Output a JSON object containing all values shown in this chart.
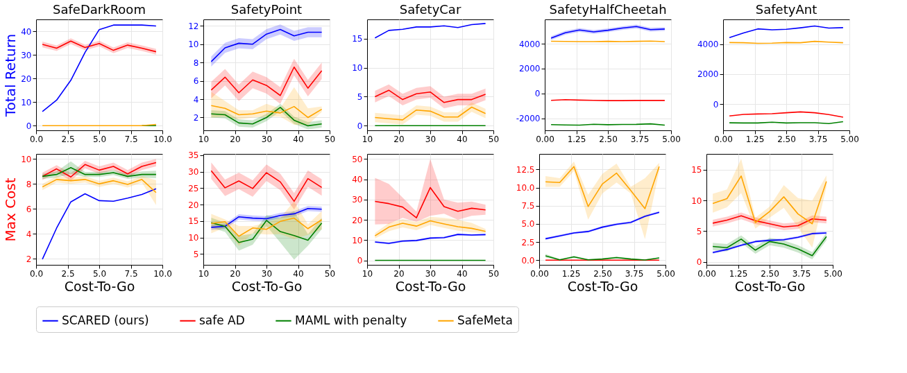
{
  "chart_data": [
    {
      "type": "line",
      "title": "SafeDarkRoom",
      "ylabel": "Total Return",
      "x": [
        0.5,
        1.625,
        2.75,
        3.875,
        5.0,
        6.125,
        7.25,
        8.375,
        9.5
      ],
      "xlim": [
        0,
        10
      ],
      "xticks": [
        {
          "value": 0,
          "label": "0.0"
        },
        {
          "value": 2.5,
          "label": "2.5"
        },
        {
          "value": 5,
          "label": "5.0"
        },
        {
          "value": 7.5,
          "label": "7.5"
        },
        {
          "value": 10,
          "label": "10.0"
        }
      ],
      "ylim": [
        -2,
        45
      ],
      "yticks": [
        0,
        10,
        20,
        30,
        40
      ],
      "grid": true,
      "legend": "bottom",
      "series": [
        {
          "name": "SCARED (ours)",
          "color": "#0000ff",
          "values": [
            6,
            10.8,
            19.2,
            31,
            40.7,
            42.6,
            42.6,
            42.6,
            42.2
          ]
        },
        {
          "name": "safe AD",
          "color": "#ff0000",
          "values": [
            34.4,
            32.8,
            35.8,
            33.1,
            34.8,
            31.9,
            34.1,
            32.8,
            31.3
          ],
          "lower": [
            33.2,
            31.6,
            34.6,
            31.9,
            33.6,
            30.7,
            32.9,
            31.6,
            30.1
          ],
          "upper": [
            35.6,
            34.0,
            37.0,
            34.3,
            36.0,
            33.1,
            35.3,
            34.0,
            32.5
          ]
        },
        {
          "name": "MAML with penalty",
          "color": "#008000",
          "values": [
            null,
            null,
            null,
            null,
            null,
            null,
            null,
            0,
            0
          ]
        },
        {
          "name": "SafeMeta",
          "color": "#ffa500",
          "values": [
            0,
            0,
            0,
            0,
            0,
            0,
            0,
            0,
            0.5
          ]
        }
      ]
    },
    {
      "type": "line",
      "title": "SafetyPoint",
      "x": [
        12.5,
        16.875,
        21.25,
        25.625,
        30,
        34.375,
        38.75,
        43.125,
        47.5
      ],
      "xlim": [
        10,
        50
      ],
      "xticks": [
        10,
        20,
        30,
        40,
        50
      ],
      "ylim": [
        0.6,
        12.7
      ],
      "yticks": [
        2,
        4,
        6,
        8,
        10,
        12
      ],
      "grid": true,
      "series": [
        {
          "color": "#0000ff",
          "values": [
            8.1,
            9.6,
            10.1,
            10.0,
            11.1,
            11.6,
            10.9,
            11.3,
            11.3
          ],
          "lower": [
            7.55,
            9.05,
            9.55,
            9.45,
            10.55,
            11.05,
            10.35,
            10.75,
            10.75
          ],
          "upper": [
            8.65,
            10.15,
            10.65,
            10.55,
            11.65,
            12.15,
            11.45,
            11.85,
            11.85
          ]
        },
        {
          "color": "#ff0000",
          "values": [
            5.0,
            6.4,
            4.7,
            6.1,
            5.5,
            4.4,
            7.5,
            5.2,
            7.1
          ],
          "lower": [
            4.1,
            5.5,
            3.8,
            5.2,
            4.6,
            3.5,
            6.6,
            4.3,
            6.2
          ],
          "upper": [
            5.9,
            7.3,
            5.6,
            7.0,
            6.4,
            5.3,
            8.4,
            6.1,
            8.0
          ]
        },
        {
          "color": "#008000",
          "values": [
            2.4,
            2.3,
            1.4,
            1.3,
            2.0,
            3.1,
            1.7,
            1.1,
            1.3
          ],
          "lower": [
            2.0,
            1.9,
            1.0,
            0.9,
            1.6,
            2.7,
            1.3,
            0.7,
            0.9
          ],
          "upper": [
            2.8,
            2.7,
            1.8,
            1.7,
            2.4,
            3.5,
            2.1,
            1.5,
            1.7
          ]
        },
        {
          "color": "#ffa500",
          "values": [
            3.3,
            3.0,
            2.3,
            2.4,
            2.7,
            2.5,
            3.2,
            2.0,
            2.9
          ],
          "lower": [
            2.0,
            2.1,
            1.8,
            2.0,
            2.1,
            2.1,
            1.2,
            1.2,
            2.6
          ],
          "upper": [
            4.8,
            3.8,
            2.8,
            2.8,
            3.5,
            3.0,
            5.3,
            3.0,
            3.2
          ]
        }
      ]
    },
    {
      "type": "line",
      "title": "SafetyCar",
      "x": [
        12.5,
        16.875,
        21.25,
        25.625,
        30,
        34.375,
        38.75,
        43.125,
        47.5
      ],
      "xlim": [
        10,
        50
      ],
      "xticks": [
        10,
        20,
        30,
        40,
        50
      ],
      "ylim": [
        -0.8,
        18.3
      ],
      "yticks": [
        0,
        5,
        10,
        15
      ],
      "grid": true,
      "series": [
        {
          "color": "#0000ff",
          "values": [
            15.1,
            16.4,
            16.6,
            17.0,
            17.0,
            17.2,
            16.9,
            17.4,
            17.6
          ]
        },
        {
          "color": "#ff0000",
          "values": [
            5.0,
            6.1,
            4.5,
            5.5,
            5.8,
            4.0,
            4.5,
            4.5,
            5.4
          ],
          "lower": [
            4.0,
            5.1,
            3.5,
            4.5,
            4.8,
            3.0,
            3.5,
            3.5,
            4.4
          ],
          "upper": [
            6.0,
            7.1,
            5.5,
            6.5,
            6.8,
            5.0,
            5.5,
            5.5,
            6.4
          ]
        },
        {
          "color": "#008000",
          "values": [
            0,
            0,
            0,
            0,
            0,
            0,
            0,
            0,
            0
          ]
        },
        {
          "color": "#ffa500",
          "values": [
            1.4,
            1.2,
            1.0,
            2.7,
            2.5,
            1.5,
            1.5,
            3.2,
            2.1
          ],
          "lower": [
            0.6,
            0.4,
            0.2,
            1.9,
            1.7,
            0.7,
            0.7,
            2.4,
            1.3
          ],
          "upper": [
            2.2,
            2.0,
            1.8,
            3.5,
            3.3,
            2.3,
            2.3,
            4.0,
            2.9
          ]
        }
      ]
    },
    {
      "type": "line",
      "title": "SafetyHalfCheetah",
      "x": [
        0.25,
        0.8125,
        1.375,
        1.9375,
        2.5,
        3.0625,
        3.625,
        4.1875,
        4.75
      ],
      "xlim": [
        0,
        5
      ],
      "xticks": [
        {
          "value": 0,
          "label": "0.00"
        },
        1.25,
        {
          "value": 2.5,
          "label": "2.50"
        },
        3.75,
        {
          "value": 5,
          "label": "5.00"
        }
      ],
      "ylim": [
        -2960,
        5950
      ],
      "yticks": [
        -2000,
        0,
        2000,
        4000
      ],
      "grid": true,
      "series": [
        {
          "color": "#0000ff",
          "values": [
            4450,
            4880,
            5100,
            4950,
            5080,
            5250,
            5380,
            5130,
            5180
          ],
          "lower": [
            4300,
            4730,
            4950,
            4800,
            4930,
            5100,
            5230,
            4980,
            5030
          ],
          "upper": [
            4600,
            5030,
            5250,
            5100,
            5230,
            5400,
            5530,
            5280,
            5330
          ]
        },
        {
          "color": "#ff0000",
          "values": [
            -550,
            -500,
            -530,
            -550,
            -570,
            -570,
            -560,
            -560,
            -560
          ]
        },
        {
          "color": "#008000",
          "values": [
            -2500,
            -2530,
            -2540,
            -2470,
            -2510,
            -2490,
            -2480,
            -2440,
            -2540
          ]
        },
        {
          "color": "#ffa500",
          "values": [
            4200,
            4180,
            4170,
            4170,
            4190,
            4170,
            4190,
            4210,
            4170
          ]
        }
      ]
    },
    {
      "type": "line",
      "title": "SafetyAnt",
      "x": [
        0.25,
        0.8125,
        1.375,
        1.9375,
        2.5,
        3.0625,
        3.625,
        4.1875,
        4.75
      ],
      "xlim": [
        0,
        5
      ],
      "xticks": [
        {
          "value": 0,
          "label": "0.00"
        },
        1.25,
        {
          "value": 2.5,
          "label": "2.50"
        },
        3.75,
        {
          "value": 5,
          "label": "5.00"
        }
      ],
      "ylim": [
        -1740,
        5640
      ],
      "yticks": [
        0,
        2000,
        4000
      ],
      "grid": true,
      "series": [
        {
          "color": "#0000ff",
          "values": [
            4430,
            4740,
            5010,
            4950,
            4980,
            5080,
            5200,
            5060,
            5090
          ]
        },
        {
          "color": "#ff0000",
          "values": [
            -780,
            -680,
            -650,
            -630,
            -570,
            -510,
            -570,
            -690,
            -860
          ]
        },
        {
          "color": "#008000",
          "values": [
            -1240,
            -1250,
            -1250,
            -1200,
            -1250,
            -1230,
            -1230,
            -1290,
            -1160
          ]
        },
        {
          "color": "#ffa500",
          "values": [
            4100,
            4090,
            4050,
            4060,
            4100,
            4090,
            4180,
            4130,
            4090
          ]
        }
      ]
    },
    {
      "type": "line",
      "ylabel": "Max Cost",
      "xlabel": "Cost-To-Go",
      "x": [
        0.5,
        1.625,
        2.75,
        3.875,
        5.0,
        6.125,
        7.25,
        8.375,
        9.5
      ],
      "xlim": [
        0,
        10
      ],
      "xticks": [
        {
          "value": 0,
          "label": "0.0"
        },
        {
          "value": 2.5,
          "label": "2.5"
        },
        {
          "value": 5,
          "label": "5.0"
        },
        {
          "value": 7.5,
          "label": "7.5"
        },
        {
          "value": 10,
          "label": "10.0"
        }
      ],
      "ylim": [
        1.5,
        10.4
      ],
      "yticks": [
        2,
        4,
        6,
        8,
        10
      ],
      "grid": true,
      "series": [
        {
          "color": "#0000ff",
          "values": [
            1.95,
            4.45,
            6.55,
            7.2,
            6.65,
            6.6,
            6.85,
            7.15,
            7.6
          ]
        },
        {
          "color": "#ff0000",
          "values": [
            8.6,
            9.2,
            8.55,
            9.55,
            9.1,
            9.4,
            8.8,
            9.4,
            9.7
          ],
          "lower": [
            8.3,
            8.9,
            8.25,
            9.25,
            8.8,
            9.1,
            8.5,
            9.1,
            9.4
          ],
          "upper": [
            8.9,
            9.5,
            8.85,
            9.85,
            9.4,
            9.7,
            9.1,
            9.7,
            10.0
          ]
        },
        {
          "color": "#008000",
          "values": [
            8.6,
            8.75,
            9.3,
            8.75,
            8.75,
            8.9,
            8.6,
            8.75,
            8.75
          ],
          "lower": [
            8.4,
            8.5,
            8.8,
            8.55,
            8.55,
            8.7,
            8.4,
            8.5,
            8.45
          ],
          "upper": [
            8.8,
            9.0,
            9.8,
            8.95,
            8.95,
            9.1,
            8.8,
            9.0,
            9.05
          ]
        },
        {
          "color": "#ffa500",
          "values": [
            7.75,
            8.35,
            8.25,
            8.35,
            8.0,
            8.25,
            7.95,
            8.35,
            7.3
          ],
          "lower": [
            7.5,
            8.1,
            8.0,
            8.1,
            7.75,
            8.0,
            7.7,
            8.1,
            6.3
          ],
          "upper": [
            8.0,
            8.6,
            8.5,
            8.6,
            8.25,
            8.5,
            8.2,
            8.6,
            8.3
          ]
        }
      ]
    },
    {
      "type": "line",
      "xlabel": "Cost-To-Go",
      "x": [
        12.5,
        16.875,
        21.25,
        25.625,
        30,
        34.375,
        38.75,
        43.125,
        47.5
      ],
      "xlim": [
        10,
        50
      ],
      "xticks": [
        10,
        20,
        30,
        40,
        50
      ],
      "ylim": [
        1.7,
        35.4
      ],
      "yticks": [
        5,
        10,
        15,
        20,
        25,
        30,
        35
      ],
      "grid": true,
      "series": [
        {
          "color": "#0000ff",
          "values": [
            13.1,
            13.4,
            16.3,
            15.9,
            15.7,
            16.7,
            17.2,
            18.8,
            18.6
          ],
          "lower": [
            12.3,
            12.6,
            15.5,
            15.1,
            14.9,
            15.9,
            16.4,
            18.0,
            17.8
          ],
          "upper": [
            13.9,
            14.2,
            17.1,
            16.7,
            16.5,
            17.5,
            18.0,
            19.6,
            19.4
          ]
        },
        {
          "color": "#ff0000",
          "values": [
            30.3,
            25.1,
            27.2,
            24.9,
            29.7,
            26.9,
            21.0,
            27.9,
            25.2
          ],
          "lower": [
            27.8,
            22.6,
            24.7,
            22.4,
            27.2,
            24.4,
            18.5,
            25.4,
            22.7
          ],
          "upper": [
            32.8,
            27.6,
            29.7,
            27.4,
            32.2,
            29.4,
            23.5,
            30.4,
            27.7
          ]
        },
        {
          "color": "#008000",
          "values": [
            14.5,
            13.4,
            8.5,
            9.5,
            15.2,
            11.8,
            10.6,
            9.2,
            14.4
          ],
          "lower": [
            13.0,
            11.7,
            6.0,
            7.8,
            13.5,
            8.5,
            3.3,
            7.5,
            12.5
          ],
          "upper": [
            16.0,
            14.5,
            10.5,
            11.2,
            16.8,
            16.0,
            18.0,
            11.0,
            16.0
          ]
        },
        {
          "color": "#ffa500",
          "values": [
            14.3,
            14.8,
            10.4,
            12.9,
            12.5,
            14.9,
            15.9,
            12.7,
            15.4
          ],
          "lower": [
            11.3,
            13.0,
            7.5,
            11.3,
            10.9,
            11.0,
            9.5,
            10.8,
            12.5
          ],
          "upper": [
            17.2,
            15.5,
            13.5,
            13.5,
            14.5,
            16.0,
            21.0,
            14.0,
            18.0
          ]
        }
      ]
    },
    {
      "type": "line",
      "xlabel": "Cost-To-Go",
      "x": [
        12.5,
        16.875,
        21.25,
        25.625,
        30,
        34.375,
        38.75,
        43.125,
        47.5
      ],
      "xlim": [
        10,
        50
      ],
      "xticks": [
        10,
        20,
        30,
        40,
        50
      ],
      "ylim": [
        -2.2,
        52.5
      ],
      "yticks": [
        0,
        10,
        20,
        30,
        40,
        50
      ],
      "grid": true,
      "series": [
        {
          "color": "#0000ff",
          "values": [
            9.1,
            8.4,
            9.5,
            9.8,
            11.0,
            11.2,
            12.8,
            12.5,
            12.7
          ],
          "lower": [
            8.6,
            7.9,
            9.0,
            9.3,
            10.5,
            10.7,
            12.3,
            12.0,
            12.2
          ],
          "upper": [
            9.6,
            8.9,
            10.0,
            10.3,
            11.5,
            11.7,
            13.3,
            13.0,
            13.2
          ]
        },
        {
          "color": "#ff0000",
          "values": [
            29.1,
            28.0,
            26.3,
            21.0,
            35.9,
            26.5,
            24.2,
            25.7,
            24.9
          ],
          "lower": [
            17.7,
            18.0,
            21.0,
            19.0,
            22.0,
            23.0,
            20.0,
            22.0,
            22.5
          ],
          "upper": [
            40.7,
            37.7,
            31.0,
            24.0,
            50.0,
            30.0,
            28.5,
            29.0,
            27.5
          ]
        },
        {
          "color": "#008000",
          "values": [
            0,
            0,
            0,
            0,
            0,
            0,
            0,
            0,
            0
          ]
        },
        {
          "color": "#ffa500",
          "values": [
            12.1,
            16.4,
            18.3,
            16.9,
            19.5,
            18.0,
            16.6,
            15.8,
            14.3
          ],
          "lower": [
            10.8,
            14.4,
            16.3,
            14.9,
            17.5,
            16.0,
            14.6,
            13.8,
            13.5
          ],
          "upper": [
            13.5,
            18.4,
            20.3,
            18.9,
            21.5,
            21.0,
            20.0,
            18.5,
            15.5
          ]
        }
      ]
    },
    {
      "type": "line",
      "xlabel": "Cost-To-Go",
      "x": [
        0.25,
        0.8125,
        1.375,
        1.9375,
        2.5,
        3.0625,
        3.625,
        4.1875,
        4.75
      ],
      "xlim": [
        0,
        5
      ],
      "xticks": [
        {
          "value": 0,
          "label": "0.00"
        },
        1.25,
        {
          "value": 2.5,
          "label": "2.50"
        },
        3.75,
        {
          "value": 5,
          "label": "5.00"
        }
      ],
      "ylim": [
        -0.65,
        14.65
      ],
      "yticks": [
        {
          "value": 0,
          "label": "0.0"
        },
        2.5,
        {
          "value": 5,
          "label": "5.0"
        },
        7.5,
        {
          "value": 10,
          "label": "10.0"
        },
        12.5
      ],
      "grid": true,
      "series": [
        {
          "color": "#0000ff",
          "values": [
            2.95,
            3.35,
            3.75,
            3.95,
            4.55,
            4.95,
            5.2,
            6.05,
            6.6
          ],
          "lower": [
            2.8,
            3.2,
            3.6,
            3.8,
            4.4,
            4.8,
            5.05,
            5.9,
            6.45
          ],
          "upper": [
            3.1,
            3.5,
            3.9,
            4.1,
            4.7,
            5.1,
            5.35,
            6.2,
            6.75
          ]
        },
        {
          "color": "#ff0000",
          "values": [
            0,
            0,
            0,
            0,
            0,
            0,
            0,
            0,
            0
          ]
        },
        {
          "color": "#008000",
          "values": [
            0.6,
            0.05,
            0.45,
            0.05,
            0.15,
            0.35,
            0.15,
            0.02,
            0.3
          ],
          "lower": [
            0.35,
            0,
            0.3,
            0,
            0.05,
            0.2,
            0.05,
            0,
            0.2
          ],
          "upper": [
            0.85,
            0.15,
            0.6,
            0.15,
            0.25,
            0.5,
            0.25,
            0.1,
            0.4
          ]
        },
        {
          "color": "#ffa500",
          "values": [
            10.8,
            10.7,
            12.9,
            7.4,
            10.5,
            12.0,
            9.6,
            7.1,
            12.9
          ],
          "lower": [
            10.1,
            10.1,
            12.3,
            5.6,
            9.2,
            10.7,
            9.2,
            2.9,
            12.3
          ],
          "upper": [
            11.6,
            11.3,
            13.6,
            9.0,
            11.9,
            13.3,
            10.1,
            11.3,
            13.4
          ]
        }
      ]
    },
    {
      "type": "line",
      "xlabel": "Cost-To-Go",
      "x": [
        0.25,
        0.8125,
        1.375,
        1.9375,
        2.5,
        3.0625,
        3.625,
        4.1875,
        4.75
      ],
      "xlim": [
        0,
        5
      ],
      "xticks": [
        {
          "value": 0,
          "label": "0.00"
        },
        1.25,
        {
          "value": 2.5,
          "label": "2.50"
        },
        3.75,
        {
          "value": 5,
          "label": "5.00"
        }
      ],
      "ylim": [
        -0.5,
        17.6
      ],
      "yticks": [
        0,
        5,
        10,
        15
      ],
      "grid": true,
      "series": [
        {
          "color": "#0000ff",
          "values": [
            1.5,
            2.0,
            2.7,
            3.3,
            3.5,
            3.6,
            4.0,
            4.6,
            4.7
          ],
          "lower": [
            1.3,
            1.8,
            2.5,
            3.1,
            3.3,
            3.4,
            3.8,
            4.4,
            4.5
          ],
          "upper": [
            1.7,
            2.2,
            2.9,
            3.5,
            3.7,
            3.8,
            4.2,
            4.8,
            4.9
          ]
        },
        {
          "color": "#ff0000",
          "values": [
            6.3,
            6.8,
            7.5,
            6.7,
            6.2,
            5.7,
            5.9,
            7.0,
            6.8
          ],
          "lower": [
            5.75,
            6.25,
            6.95,
            6.15,
            5.65,
            5.15,
            5.35,
            6.45,
            6.25
          ],
          "upper": [
            6.85,
            7.35,
            8.05,
            7.25,
            6.75,
            6.25,
            6.45,
            7.55,
            7.35
          ]
        },
        {
          "color": "#008000",
          "values": [
            2.5,
            2.3,
            3.7,
            1.9,
            3.3,
            2.9,
            2.1,
            1.0,
            4.1
          ],
          "lower": [
            1.9,
            1.7,
            3.1,
            1.3,
            2.7,
            2.3,
            1.5,
            0.4,
            3.5
          ],
          "upper": [
            3.1,
            2.9,
            4.3,
            2.5,
            3.9,
            3.5,
            2.7,
            1.6,
            4.7
          ]
        },
        {
          "color": "#ffa500",
          "values": [
            9.5,
            10.3,
            14.0,
            6.4,
            8.2,
            10.6,
            7.8,
            6.2,
            13.1
          ],
          "lower": [
            8.0,
            8.9,
            11.2,
            5.4,
            7.2,
            8.8,
            5.6,
            2.3,
            12.2
          ],
          "upper": [
            11.1,
            11.8,
            16.8,
            7.2,
            9.0,
            12.5,
            10.4,
            10.0,
            14.1
          ]
        }
      ]
    }
  ]
}
